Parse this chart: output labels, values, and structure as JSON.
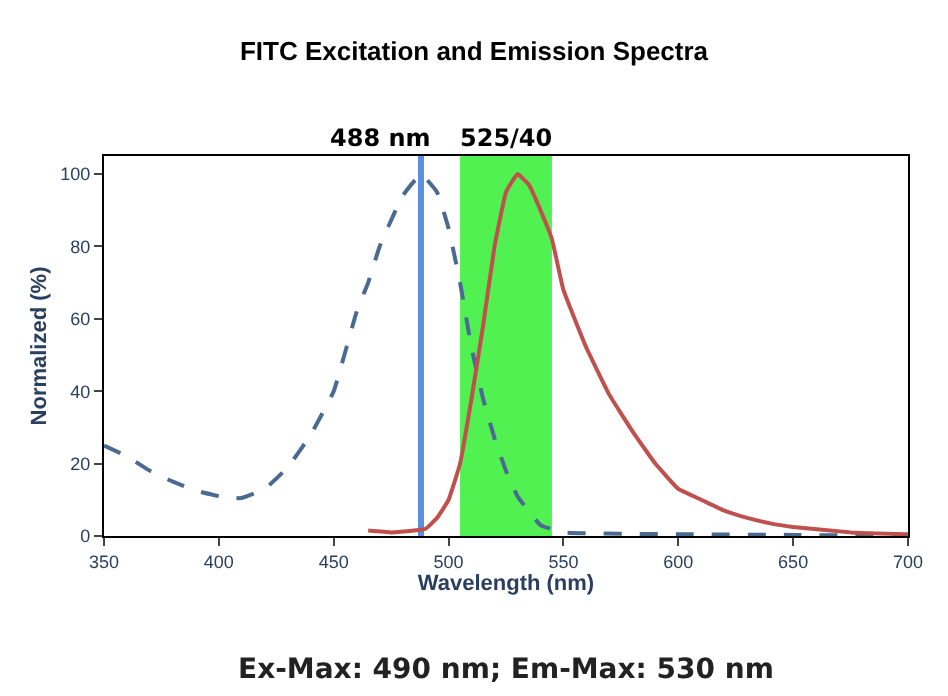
{
  "chart_data": {
    "type": "line",
    "title": "FITC Excitation and Emission Spectra",
    "xlabel": "Wavelength (nm)",
    "ylabel": "Normalized (%)",
    "series": [
      {
        "color": "#4a6a94",
        "line_style": "dashed",
        "x": [
          350,
          360,
          370,
          380,
          390,
          400,
          405,
          410,
          420,
          430,
          440,
          450,
          460,
          465,
          470,
          480,
          488,
          495,
          500,
          505,
          510,
          515,
          520,
          525,
          530,
          540,
          550,
          600,
          650,
          700
        ],
        "values": [
          25,
          22,
          18,
          15,
          12.5,
          11,
          10.5,
          10.5,
          13,
          19,
          28,
          40,
          62,
          70,
          80,
          94,
          100,
          95,
          85,
          70,
          52,
          38,
          27,
          18,
          11,
          3,
          1,
          0.5,
          0.3,
          0
        ]
      },
      {
        "color": "#c0504d",
        "line_style": "solid",
        "x": [
          465,
          475,
          485,
          490,
          495,
          500,
          505,
          510,
          515,
          520,
          525,
          530,
          535,
          540,
          545,
          550,
          560,
          570,
          580,
          590,
          600,
          610,
          620,
          630,
          640,
          650,
          675,
          700
        ],
        "values": [
          1.5,
          1,
          1.5,
          2,
          5,
          10,
          20,
          38,
          58,
          80,
          95,
          100,
          97,
          90,
          82,
          68,
          52,
          39,
          29,
          20,
          13,
          10,
          7,
          5,
          3.5,
          2.5,
          1,
          0.5
        ]
      }
    ],
    "xlim": [
      350,
      700
    ],
    "xticks": [
      350,
      400,
      450,
      500,
      550,
      600,
      650,
      700
    ],
    "ylim": [
      0,
      105
    ],
    "yticks": [
      0,
      20,
      40,
      60,
      80,
      100
    ],
    "grid": false,
    "marker": "none",
    "ref_lines": [
      {
        "axis": "x",
        "value": 488,
        "label": "488 nm",
        "color": "#5b8fe0"
      }
    ],
    "bands": [
      {
        "axis": "x",
        "from": 505,
        "to": 545,
        "label": "525/40",
        "color": "#33ee33"
      }
    ],
    "annotations": [
      "Ex-Max: 490 nm; Em-Max: 530 nm"
    ]
  }
}
